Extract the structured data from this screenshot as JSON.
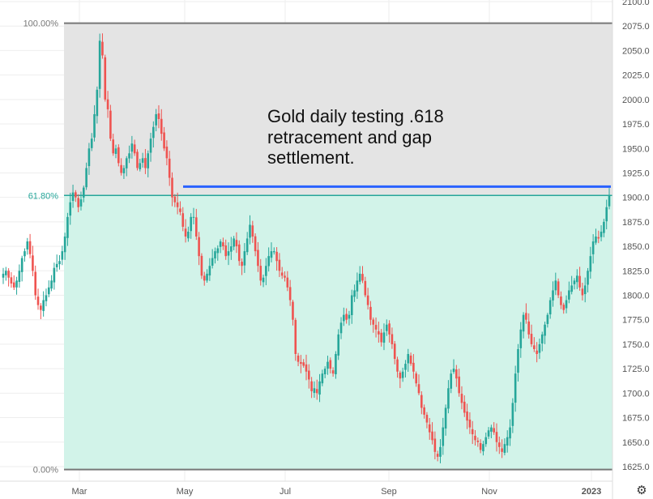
{
  "chart_data": {
    "type": "candlestick",
    "title": "",
    "annotation": [
      "Gold daily testing .618",
      "retracement and gap",
      "settlement."
    ],
    "y_axis": {
      "position": "right",
      "range": [
        1615,
        2100
      ],
      "ticks": [
        "2100.0",
        "2075.0",
        "2050.0",
        "2025.0",
        "2000.0",
        "1975.0",
        "1950.0",
        "1925.0",
        "1900.0",
        "1875.0",
        "1850.0",
        "1825.0",
        "1800.0",
        "1775.0",
        "1750.0",
        "1725.0",
        "1700.0",
        "1675.0",
        "1650.0",
        "1625.0"
      ]
    },
    "x_axis": {
      "ticks": [
        "Mar",
        "May",
        "Jul",
        "Sep",
        "Nov",
        "2023"
      ]
    },
    "fib_levels": [
      {
        "label": "100.00%",
        "price": 2078
      },
      {
        "label": "61.80%",
        "price": 1902
      },
      {
        "label": "0.00%",
        "price": 1622
      }
    ],
    "gap_line": {
      "price": 1911
    },
    "colors": {
      "up": "#26a69a",
      "down": "#ef5350",
      "fib_upper_fill": "#e4e4e4",
      "fib_lower_fill": "#d2f3e9",
      "fib_line_100": "#777777",
      "fib_line_618": "#26a69a",
      "gap_line": "#2962ff"
    },
    "series": [
      {
        "name": "",
        "close_path": [
          1822,
          1825,
          1818,
          1812,
          1808,
          1815,
          1825,
          1838,
          1845,
          1855,
          1842,
          1825,
          1800,
          1790,
          1785,
          1795,
          1800,
          1808,
          1815,
          1828,
          1832,
          1835,
          1845,
          1860,
          1880,
          1895,
          1905,
          1900,
          1890,
          1898,
          1910,
          1930,
          1950,
          1960,
          1985,
          2010,
          2060,
          2045,
          2000,
          1990,
          1960,
          1945,
          1950,
          1935,
          1925,
          1930,
          1940,
          1945,
          1955,
          1945,
          1930,
          1935,
          1940,
          1930,
          1945,
          1960,
          1972,
          1985,
          1980,
          1965,
          1950,
          1940,
          1920,
          1900,
          1895,
          1890,
          1885,
          1870,
          1860,
          1865,
          1880,
          1880,
          1860,
          1840,
          1820,
          1815,
          1822,
          1830,
          1838,
          1845,
          1848,
          1855,
          1850,
          1840,
          1845,
          1850,
          1858,
          1850,
          1835,
          1830,
          1845,
          1858,
          1872,
          1860,
          1845,
          1830,
          1815,
          1818,
          1830,
          1840,
          1845,
          1845,
          1835,
          1825,
          1820,
          1818,
          1808,
          1795,
          1775,
          1740,
          1732,
          1730,
          1728,
          1722,
          1714,
          1702,
          1705,
          1700,
          1712,
          1720,
          1725,
          1732,
          1725,
          1720,
          1740,
          1760,
          1772,
          1780,
          1775,
          1780,
          1800,
          1805,
          1815,
          1822,
          1815,
          1800,
          1790,
          1775,
          1770,
          1765,
          1760,
          1752,
          1762,
          1770,
          1760,
          1750,
          1735,
          1722,
          1715,
          1722,
          1730,
          1740,
          1730,
          1722,
          1710,
          1700,
          1685,
          1678,
          1670,
          1660,
          1652,
          1640,
          1635,
          1645,
          1665,
          1685,
          1705,
          1720,
          1725,
          1715,
          1700,
          1690,
          1680,
          1672,
          1665,
          1658,
          1652,
          1650,
          1642,
          1648,
          1655,
          1662,
          1665,
          1660,
          1650,
          1645,
          1640,
          1648,
          1655,
          1665,
          1690,
          1720,
          1745,
          1765,
          1780,
          1775,
          1760,
          1750,
          1745,
          1740,
          1750,
          1760,
          1770,
          1780,
          1795,
          1805,
          1815,
          1800,
          1790,
          1785,
          1795,
          1805,
          1810,
          1815,
          1820,
          1808,
          1800,
          1810,
          1825,
          1840,
          1855,
          1860,
          1858,
          1865,
          1875,
          1890,
          1902
        ]
      }
    ]
  }
}
